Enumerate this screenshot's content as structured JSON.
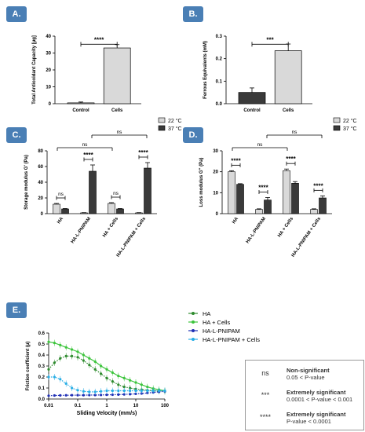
{
  "panels": {
    "A": "A.",
    "B": "B.",
    "C": "C.",
    "D": "D.",
    "E": "E."
  },
  "legend_box": {
    "rows": [
      {
        "symbol": "ns",
        "title": "Non-significant",
        "detail": "0.05 < P-value"
      },
      {
        "symbol": "***",
        "title": "Extremely significant",
        "detail": "0.0001 < P-value < 0.001"
      },
      {
        "symbol": "****",
        "title": "Extremely significant",
        "detail": "P-value < 0.0001"
      }
    ]
  },
  "colors": {
    "light_bar": "#d9d9d9",
    "dark_bar": "#3a3a3a",
    "HA": "#2e8b2e",
    "HA_Cells": "#3cc43c",
    "HA_L_PNIPAM": "#1f2fb5",
    "HA_L_PNIPAM_Cells": "#29aee6"
  },
  "chart_data": [
    {
      "panel": "A",
      "type": "bar",
      "categories": [
        "Control",
        "Cells"
      ],
      "values": [
        0.5,
        33
      ],
      "errors": [
        0.5,
        2
      ],
      "ylabel": "Total Antioxidant Capacity [µg]",
      "ylim": [
        0,
        40
      ],
      "yticks": [
        "0",
        "10",
        "20",
        "30",
        "40"
      ],
      "significance": "****"
    },
    {
      "panel": "B",
      "type": "bar",
      "categories": [
        "Control",
        "Cells"
      ],
      "values": [
        0.05,
        0.235
      ],
      "errors": [
        0.02,
        0.03
      ],
      "ylabel": "Ferrous Equivalents (mM)",
      "ylim": [
        0,
        0.3
      ],
      "yticks": [
        "0.0",
        "0.1",
        "0.2",
        "0.3"
      ],
      "significance": "***"
    },
    {
      "panel": "C",
      "type": "bar",
      "categories": [
        "HA",
        "HA-L-PNIPAM",
        "HA + Cells",
        "HA-L-PNIPAM + Cells"
      ],
      "series": [
        {
          "name": "22 °C",
          "values": [
            12,
            1,
            13,
            1
          ],
          "errors": [
            1,
            0.3,
            1,
            0.3
          ]
        },
        {
          "name": "37 °C",
          "values": [
            6,
            54,
            6,
            58
          ],
          "errors": [
            0.5,
            8,
            0.5,
            7
          ]
        }
      ],
      "ylabel": "Storage modulus G' (Pa)",
      "ylim": [
        0,
        80
      ],
      "yticks": [
        "0",
        "20",
        "40",
        "60",
        "80"
      ],
      "pair_labels": [
        "ns",
        "****",
        "ns",
        "****"
      ],
      "cross_labels": [
        "ns",
        "ns"
      ]
    },
    {
      "panel": "D",
      "type": "bar",
      "categories": [
        "HA",
        "HA-L-PNIPAM",
        "HA + Cells",
        "HA-L-PNIPAM + Cells"
      ],
      "series": [
        {
          "name": "22 °C",
          "values": [
            20,
            2,
            20.5,
            2
          ],
          "errors": [
            0.5,
            0.3,
            0.8,
            0.3
          ]
        },
        {
          "name": "37 °C",
          "values": [
            14,
            6.5,
            14.5,
            7.5
          ],
          "errors": [
            0.3,
            1.2,
            0.8,
            1
          ]
        }
      ],
      "ylabel": "Loss modulus G'' (Pa)",
      "ylim": [
        0,
        30
      ],
      "yticks": [
        "0",
        "10",
        "20",
        "30"
      ],
      "pair_labels": [
        "****",
        "****",
        "****",
        "****"
      ],
      "cross_labels": [
        "ns",
        "ns"
      ]
    },
    {
      "panel": "E",
      "type": "line",
      "xscale": "log",
      "xlabel": "Sliding Velocity (mm/s)",
      "ylabel": "Friction coefficient (µ)",
      "xlim": [
        0.01,
        100
      ],
      "ylim": [
        0,
        0.6
      ],
      "xticks": [
        "0.01",
        "0.1",
        "1",
        "10",
        "100"
      ],
      "yticks": [
        "0.0",
        "0.1",
        "0.2",
        "0.3",
        "0.4",
        "0.5",
        "0.6"
      ],
      "x": [
        0.01,
        0.0158,
        0.0251,
        0.0398,
        0.0631,
        0.1,
        0.158,
        0.251,
        0.398,
        0.631,
        1,
        1.58,
        2.51,
        3.98,
        6.31,
        10,
        15.8,
        25.1,
        39.8,
        63.1,
        100
      ],
      "series": [
        {
          "name": "HA",
          "values": [
            0.27,
            0.33,
            0.37,
            0.39,
            0.39,
            0.38,
            0.35,
            0.31,
            0.27,
            0.23,
            0.19,
            0.16,
            0.13,
            0.11,
            0.1,
            0.09,
            0.085,
            0.08,
            0.075,
            0.072,
            0.07
          ]
        },
        {
          "name": "HA + Cells",
          "values": [
            0.52,
            0.51,
            0.49,
            0.47,
            0.45,
            0.43,
            0.4,
            0.37,
            0.34,
            0.3,
            0.27,
            0.24,
            0.21,
            0.19,
            0.17,
            0.15,
            0.13,
            0.11,
            0.095,
            0.085,
            0.075
          ]
        },
        {
          "name": "HA-L-PNIPAM",
          "values": [
            0.03,
            0.032,
            0.033,
            0.034,
            0.035,
            0.035,
            0.035,
            0.036,
            0.036,
            0.037,
            0.038,
            0.039,
            0.04,
            0.042,
            0.044,
            0.047,
            0.05,
            0.055,
            0.06,
            0.065,
            0.07
          ]
        },
        {
          "name": "HA-L-PNIPAM + Cells",
          "values": [
            0.2,
            0.2,
            0.18,
            0.14,
            0.1,
            0.08,
            0.07,
            0.065,
            0.065,
            0.07,
            0.075,
            0.075,
            0.075,
            0.075,
            0.075,
            0.075,
            0.075,
            0.075,
            0.075,
            0.075,
            0.075
          ]
        }
      ]
    }
  ]
}
